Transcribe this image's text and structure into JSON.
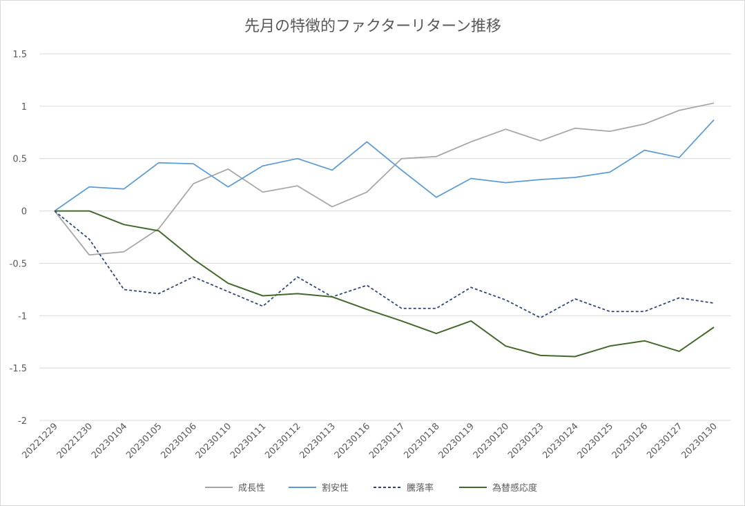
{
  "chart_data": {
    "type": "line",
    "title": "先月の特徴的ファクターリターン推移",
    "xlabel": "",
    "ylabel": "",
    "ylim": [
      -2,
      1.5
    ],
    "yticks": [
      1.5,
      1,
      0.5,
      0,
      -0.5,
      -1,
      -1.5,
      -2
    ],
    "ytick_labels": [
      "1.5",
      "1",
      "0.5",
      "0",
      "-0.5",
      "-1",
      "-1.5",
      "-2"
    ],
    "grid": true,
    "legend_position": "bottom",
    "categories": [
      "20221229",
      "20221230",
      "20230104",
      "20230105",
      "20230106",
      "20230110",
      "20230111",
      "20230112",
      "20230113",
      "20230116",
      "20230117",
      "20230118",
      "20230119",
      "20230120",
      "20230123",
      "20230124",
      "20230125",
      "20230126",
      "20230127",
      "20230130"
    ],
    "series": [
      {
        "name": "成長性",
        "color": "#a5a5a5",
        "dashed": false,
        "values": [
          0,
          -0.42,
          -0.39,
          -0.17,
          0.26,
          0.4,
          0.18,
          0.24,
          0.04,
          0.18,
          0.5,
          0.52,
          0.66,
          0.78,
          0.67,
          0.79,
          0.76,
          0.83,
          0.96,
          1.03
        ]
      },
      {
        "name": "割安性",
        "color": "#5b9bd5",
        "dashed": false,
        "values": [
          0,
          0.23,
          0.21,
          0.46,
          0.45,
          0.23,
          0.43,
          0.5,
          0.39,
          0.66,
          0.39,
          0.13,
          0.31,
          0.27,
          0.3,
          0.32,
          0.37,
          0.58,
          0.51,
          0.87
        ]
      },
      {
        "name": "騰落率",
        "color": "#264478",
        "dashed": true,
        "values": [
          0,
          -0.27,
          -0.75,
          -0.79,
          -0.63,
          -0.77,
          -0.91,
          -0.63,
          -0.82,
          -0.71,
          -0.93,
          -0.93,
          -0.73,
          -0.85,
          -1.02,
          -0.84,
          -0.96,
          -0.96,
          -0.83,
          -0.88
        ]
      },
      {
        "name": "為替感応度",
        "color": "#43682b",
        "dashed": false,
        "values": [
          0,
          0,
          -0.13,
          -0.19,
          -0.46,
          -0.69,
          -0.81,
          -0.79,
          -0.82,
          -0.94,
          -1.05,
          -1.17,
          -1.05,
          -1.29,
          -1.38,
          -1.39,
          -1.29,
          -1.24,
          -1.34,
          -1.11
        ]
      }
    ]
  }
}
